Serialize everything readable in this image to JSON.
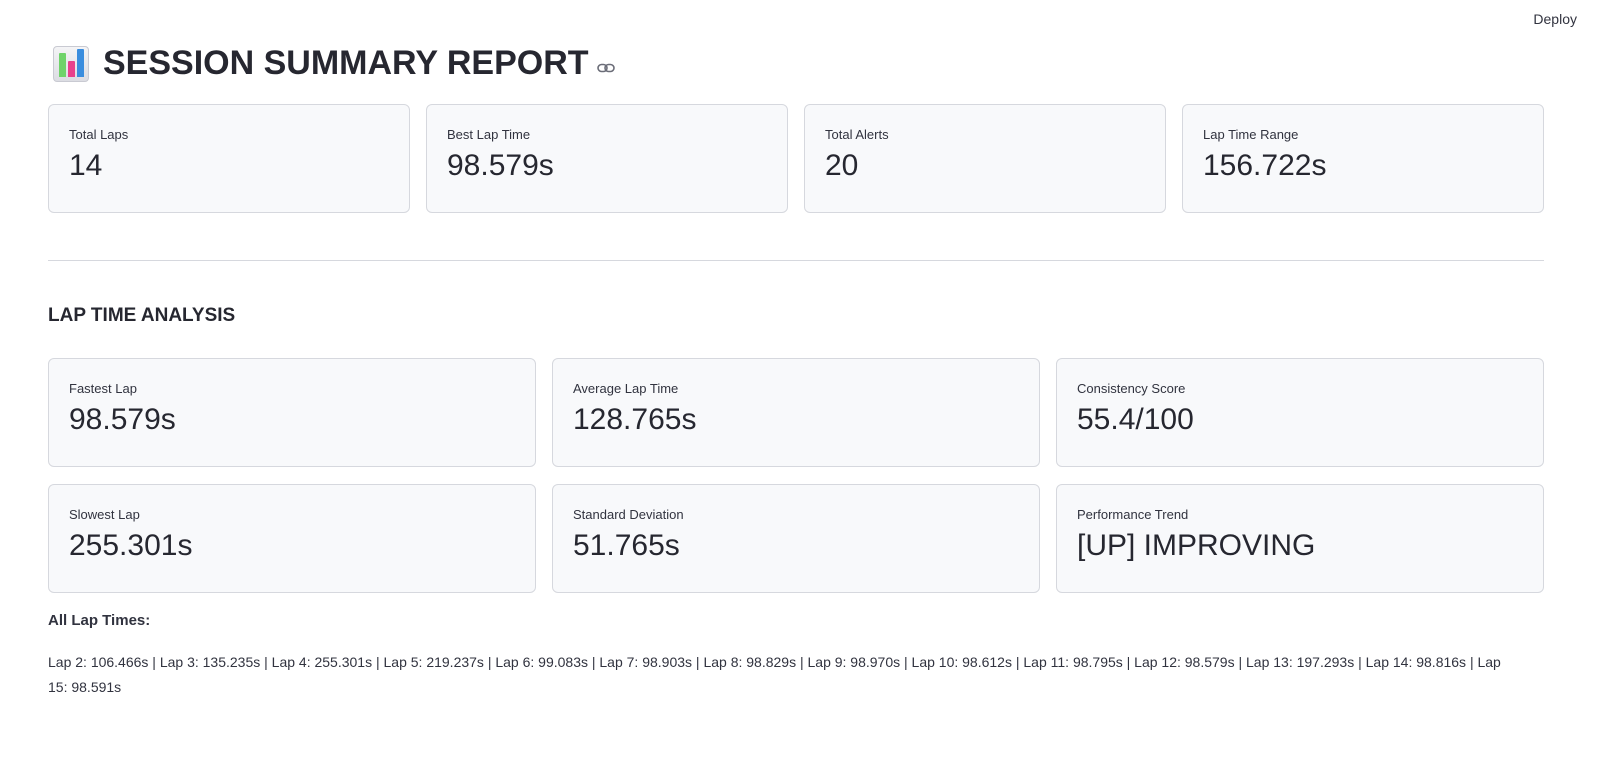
{
  "header": {
    "deploy_label": "Deploy"
  },
  "title": {
    "icon": "bar-chart-icon",
    "text": "SESSION SUMMARY REPORT",
    "link_icon": "link-icon"
  },
  "summary_metrics": [
    {
      "label": "Total Laps",
      "value": "14"
    },
    {
      "label": "Best Lap Time",
      "value": "98.579s"
    },
    {
      "label": "Total Alerts",
      "value": "20"
    },
    {
      "label": "Lap Time Range",
      "value": "156.722s"
    }
  ],
  "lap_analysis": {
    "title": "LAP TIME ANALYSIS",
    "metrics": [
      {
        "label": "Fastest Lap",
        "value": "98.579s"
      },
      {
        "label": "Average Lap Time",
        "value": "128.765s"
      },
      {
        "label": "Consistency Score",
        "value": "55.4/100"
      },
      {
        "label": "Slowest Lap",
        "value": "255.301s"
      },
      {
        "label": "Standard Deviation",
        "value": "51.765s"
      },
      {
        "label": "Performance Trend",
        "value": "[UP] IMPROVING"
      }
    ]
  },
  "all_laps": {
    "label": "All Lap Times:",
    "text": "Lap 2: 106.466s | Lap 3: 135.235s | Lap 4: 255.301s | Lap 5: 219.237s | Lap 6: 99.083s | Lap 7: 98.903s | Lap 8: 98.829s | Lap 9: 98.970s | Lap 10: 98.612s | Lap 11: 98.795s | Lap 12: 98.579s | Lap 13: 197.293s | Lap 14: 98.816s | Lap 15: 98.591s"
  }
}
